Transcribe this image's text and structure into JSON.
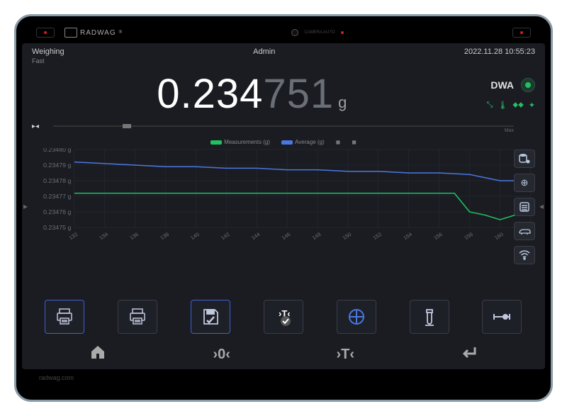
{
  "bezel": {
    "brand": "RADWAG",
    "camera_label": "CAMERA AUTO",
    "footer": "radwag.com"
  },
  "status": {
    "mode": "Weighing",
    "sub": "Fast",
    "user": "Admin",
    "datetime": "2022.11.28 10:55:23"
  },
  "reading": {
    "major": "0.234",
    "minor": "751",
    "unit": "g",
    "stability_left": "▸◂",
    "bar_max_label": "Max"
  },
  "dwa": {
    "label": "DWA",
    "active": true,
    "dot_bg": "#1e3a2e",
    "dot_inner": "#22c060"
  },
  "env_icons": [
    "vibration-icon",
    "temperature-icon",
    "humidity-icon",
    "airflow-icon"
  ],
  "chart": {
    "type": "line",
    "legend": [
      {
        "label": "Measurements (g)",
        "color": "#22c060"
      },
      {
        "label": "Average (g)",
        "color": "#4a78e0"
      }
    ],
    "y_ticks": [
      "0.23480 g",
      "0.23479 g",
      "0.23478 g",
      "0.23477 g",
      "0.23476 g",
      "0.23475 g"
    ],
    "x_ticks": [
      "132",
      "134",
      "136",
      "138",
      "140",
      "142",
      "144",
      "146",
      "148",
      "150",
      "152",
      "154",
      "156",
      "158",
      "160",
      "162"
    ],
    "ylim": [
      0.23475,
      0.2348
    ],
    "background": "#1a1c22",
    "grid_color": "#2a2d36",
    "series": [
      {
        "name": "measurements",
        "color": "#22c060",
        "width": 1.5,
        "points": [
          [
            132,
            0.234772
          ],
          [
            134,
            0.234772
          ],
          [
            136,
            0.234772
          ],
          [
            138,
            0.234772
          ],
          [
            140,
            0.234772
          ],
          [
            142,
            0.234772
          ],
          [
            144,
            0.234772
          ],
          [
            146,
            0.234772
          ],
          [
            148,
            0.234772
          ],
          [
            150,
            0.234772
          ],
          [
            152,
            0.234772
          ],
          [
            154,
            0.234772
          ],
          [
            156,
            0.234772
          ],
          [
            157,
            0.234772
          ],
          [
            158,
            0.23476
          ],
          [
            159,
            0.234758
          ],
          [
            160,
            0.234755
          ],
          [
            161,
            0.234758
          ],
          [
            162,
            0.234758
          ]
        ]
      },
      {
        "name": "average",
        "color": "#4a78e0",
        "width": 1.5,
        "points": [
          [
            132,
            0.234792
          ],
          [
            134,
            0.234791
          ],
          [
            136,
            0.23479
          ],
          [
            138,
            0.234789
          ],
          [
            140,
            0.234789
          ],
          [
            142,
            0.234788
          ],
          [
            144,
            0.234788
          ],
          [
            146,
            0.234787
          ],
          [
            148,
            0.234787
          ],
          [
            150,
            0.234786
          ],
          [
            152,
            0.234786
          ],
          [
            154,
            0.234785
          ],
          [
            156,
            0.234785
          ],
          [
            158,
            0.234784
          ],
          [
            159,
            0.234782
          ],
          [
            160,
            0.23478
          ],
          [
            161,
            0.23478
          ],
          [
            162,
            0.23478
          ]
        ]
      }
    ]
  },
  "side_buttons": [
    "db-icon",
    "connect-icon",
    "climate-icon",
    "level-icon",
    "wifi-icon"
  ],
  "action_buttons": [
    {
      "name": "print-button",
      "selected": true
    },
    {
      "name": "print2-button",
      "selected": false
    },
    {
      "name": "save-icon",
      "selected": true
    },
    {
      "name": "tare-check-icon",
      "selected": false
    },
    {
      "name": "stats-icon",
      "selected": false
    },
    {
      "name": "calibrate-icon",
      "selected": false
    },
    {
      "name": "range-icon",
      "selected": false
    }
  ],
  "sys_buttons": [
    "home-icon",
    "zero-icon",
    "tare-icon",
    "enter-icon"
  ],
  "colors": {
    "bg": "#1a1c22",
    "text": "#ccc",
    "dim": "#6a6e76",
    "accent": "#4060d0",
    "green": "#22c060",
    "blue": "#4a78e0"
  }
}
